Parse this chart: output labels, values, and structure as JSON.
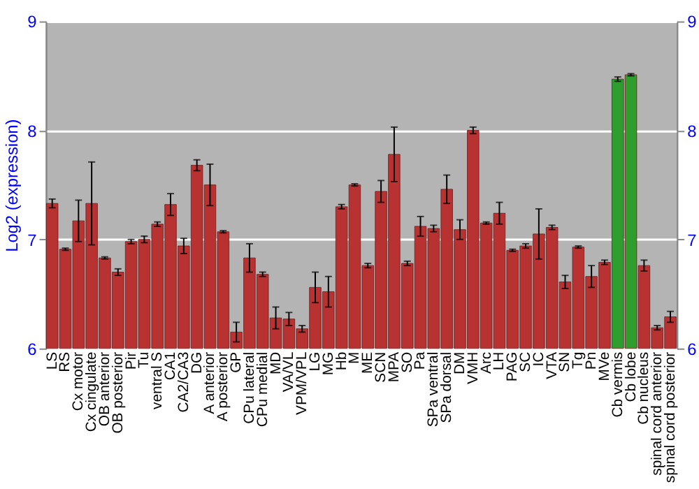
{
  "chart_data": {
    "type": "bar",
    "ylabel": "Log2 (expression)",
    "categories": [
      "LS",
      "RS",
      "Cx motor",
      "Cx cingulate",
      "OB anterior",
      "OB posterior",
      "Pir",
      "Tu",
      "ventral S",
      "CA1",
      "CA2/CA3",
      "DG",
      "A anterior",
      "A posterior",
      "GP",
      "CPu lateral",
      "CPu medial",
      "MD",
      "VA/VL",
      "VPM/VPL",
      "LG",
      "MG",
      "Hb",
      "M",
      "ME",
      "SCN",
      "MPA",
      "SO",
      "Pa",
      "SPa ventral",
      "SPa dorsal",
      "DM",
      "VMH",
      "Arc",
      "LH",
      "PAG",
      "SC",
      "IC",
      "VTA",
      "SN",
      "Tg",
      "Pn",
      "MVe",
      "Cb vermis",
      "Cb lobe",
      "Cb nucleus",
      "spinal cord anterior",
      "spinal cord posterior"
    ],
    "values": [
      7.33,
      6.91,
      7.17,
      7.33,
      6.83,
      6.7,
      6.98,
      7.0,
      7.14,
      7.32,
      6.94,
      7.68,
      7.5,
      7.07,
      6.15,
      6.83,
      6.68,
      6.28,
      6.27,
      6.18,
      6.56,
      6.52,
      7.3,
      7.5,
      6.76,
      7.44,
      7.78,
      6.78,
      7.12,
      7.1,
      7.46,
      7.09,
      8.0,
      7.15,
      7.24,
      6.9,
      6.94,
      7.05,
      7.11,
      6.61,
      6.93,
      6.66,
      6.79,
      8.47,
      8.51,
      6.76,
      6.19,
      6.29
    ],
    "errors": [
      0.04,
      0.01,
      0.19,
      0.38,
      0.01,
      0.03,
      0.02,
      0.03,
      0.02,
      0.1,
      0.07,
      0.05,
      0.19,
      0.01,
      0.09,
      0.13,
      0.02,
      0.1,
      0.06,
      0.03,
      0.14,
      0.14,
      0.02,
      0.01,
      0.02,
      0.1,
      0.25,
      0.02,
      0.09,
      0.03,
      0.13,
      0.09,
      0.03,
      0.01,
      0.1,
      0.01,
      0.02,
      0.23,
      0.02,
      0.06,
      0.01,
      0.1,
      0.02,
      0.02,
      0.01,
      0.05,
      0.02,
      0.05
    ],
    "colors": [
      "#b83232",
      "#b83232",
      "#b83232",
      "#b83232",
      "#b83232",
      "#b83232",
      "#b83232",
      "#b83232",
      "#b83232",
      "#b83232",
      "#b83232",
      "#b83232",
      "#b83232",
      "#b83232",
      "#b83232",
      "#b83232",
      "#b83232",
      "#b83232",
      "#b83232",
      "#b83232",
      "#b83232",
      "#b83232",
      "#b83232",
      "#b83232",
      "#b83232",
      "#b83232",
      "#b83232",
      "#b83232",
      "#b83232",
      "#b83232",
      "#b83232",
      "#b83232",
      "#b83232",
      "#b83232",
      "#b83232",
      "#b83232",
      "#b83232",
      "#b83232",
      "#b83232",
      "#b83232",
      "#b83232",
      "#b83232",
      "#b83232",
      "#2e9e2e",
      "#2e9e2e",
      "#b83232",
      "#b83232",
      "#b83232"
    ],
    "ylim": [
      6,
      9
    ],
    "yticks": [
      6,
      7,
      8,
      9
    ],
    "y2lim": [
      6,
      9
    ],
    "y2ticks": [
      6,
      7,
      8,
      9
    ],
    "grid": "y"
  }
}
